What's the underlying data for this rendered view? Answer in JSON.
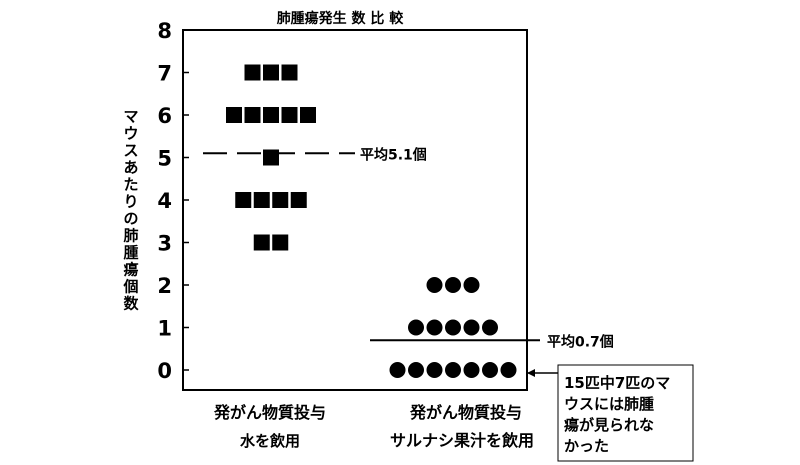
{
  "chart_data": {
    "type": "scatter",
    "title": "肺腫瘍発生 数 比 較",
    "ylabel": "マウスあたりの肺腫瘍個数",
    "ylim": [
      0,
      8
    ],
    "yticks": [
      "0",
      "1",
      "2",
      "3",
      "4",
      "5",
      "6",
      "7",
      "8"
    ],
    "grid": false,
    "series": [
      {
        "marker": "square",
        "color": "#000000",
        "category_lines": [
          "発がん物質投与",
          "水を飲用"
        ],
        "counts": [
          {
            "y": 7,
            "n": 3
          },
          {
            "y": 6,
            "n": 5
          },
          {
            "y": 5,
            "n": 1
          },
          {
            "y": 4,
            "n": 4
          },
          {
            "y": 3,
            "n": 2
          }
        ],
        "mean": 5.1,
        "mean_label": "平均5.1個",
        "mean_line_style": "dashed"
      },
      {
        "marker": "circle",
        "color": "#000000",
        "category_lines": [
          "発がん物質投与",
          "サルナシ果汁を飲用"
        ],
        "counts": [
          {
            "y": 2,
            "n": 3
          },
          {
            "y": 1,
            "n": 5
          },
          {
            "y": 0,
            "n": 7
          }
        ],
        "mean": 0.7,
        "mean_label": "平均0.7個",
        "mean_line_style": "solid"
      }
    ],
    "annotation": {
      "lines": [
        "15匹中7匹のマ",
        "ウスには肺腫",
        "瘍が見られな",
        "かった"
      ]
    }
  }
}
